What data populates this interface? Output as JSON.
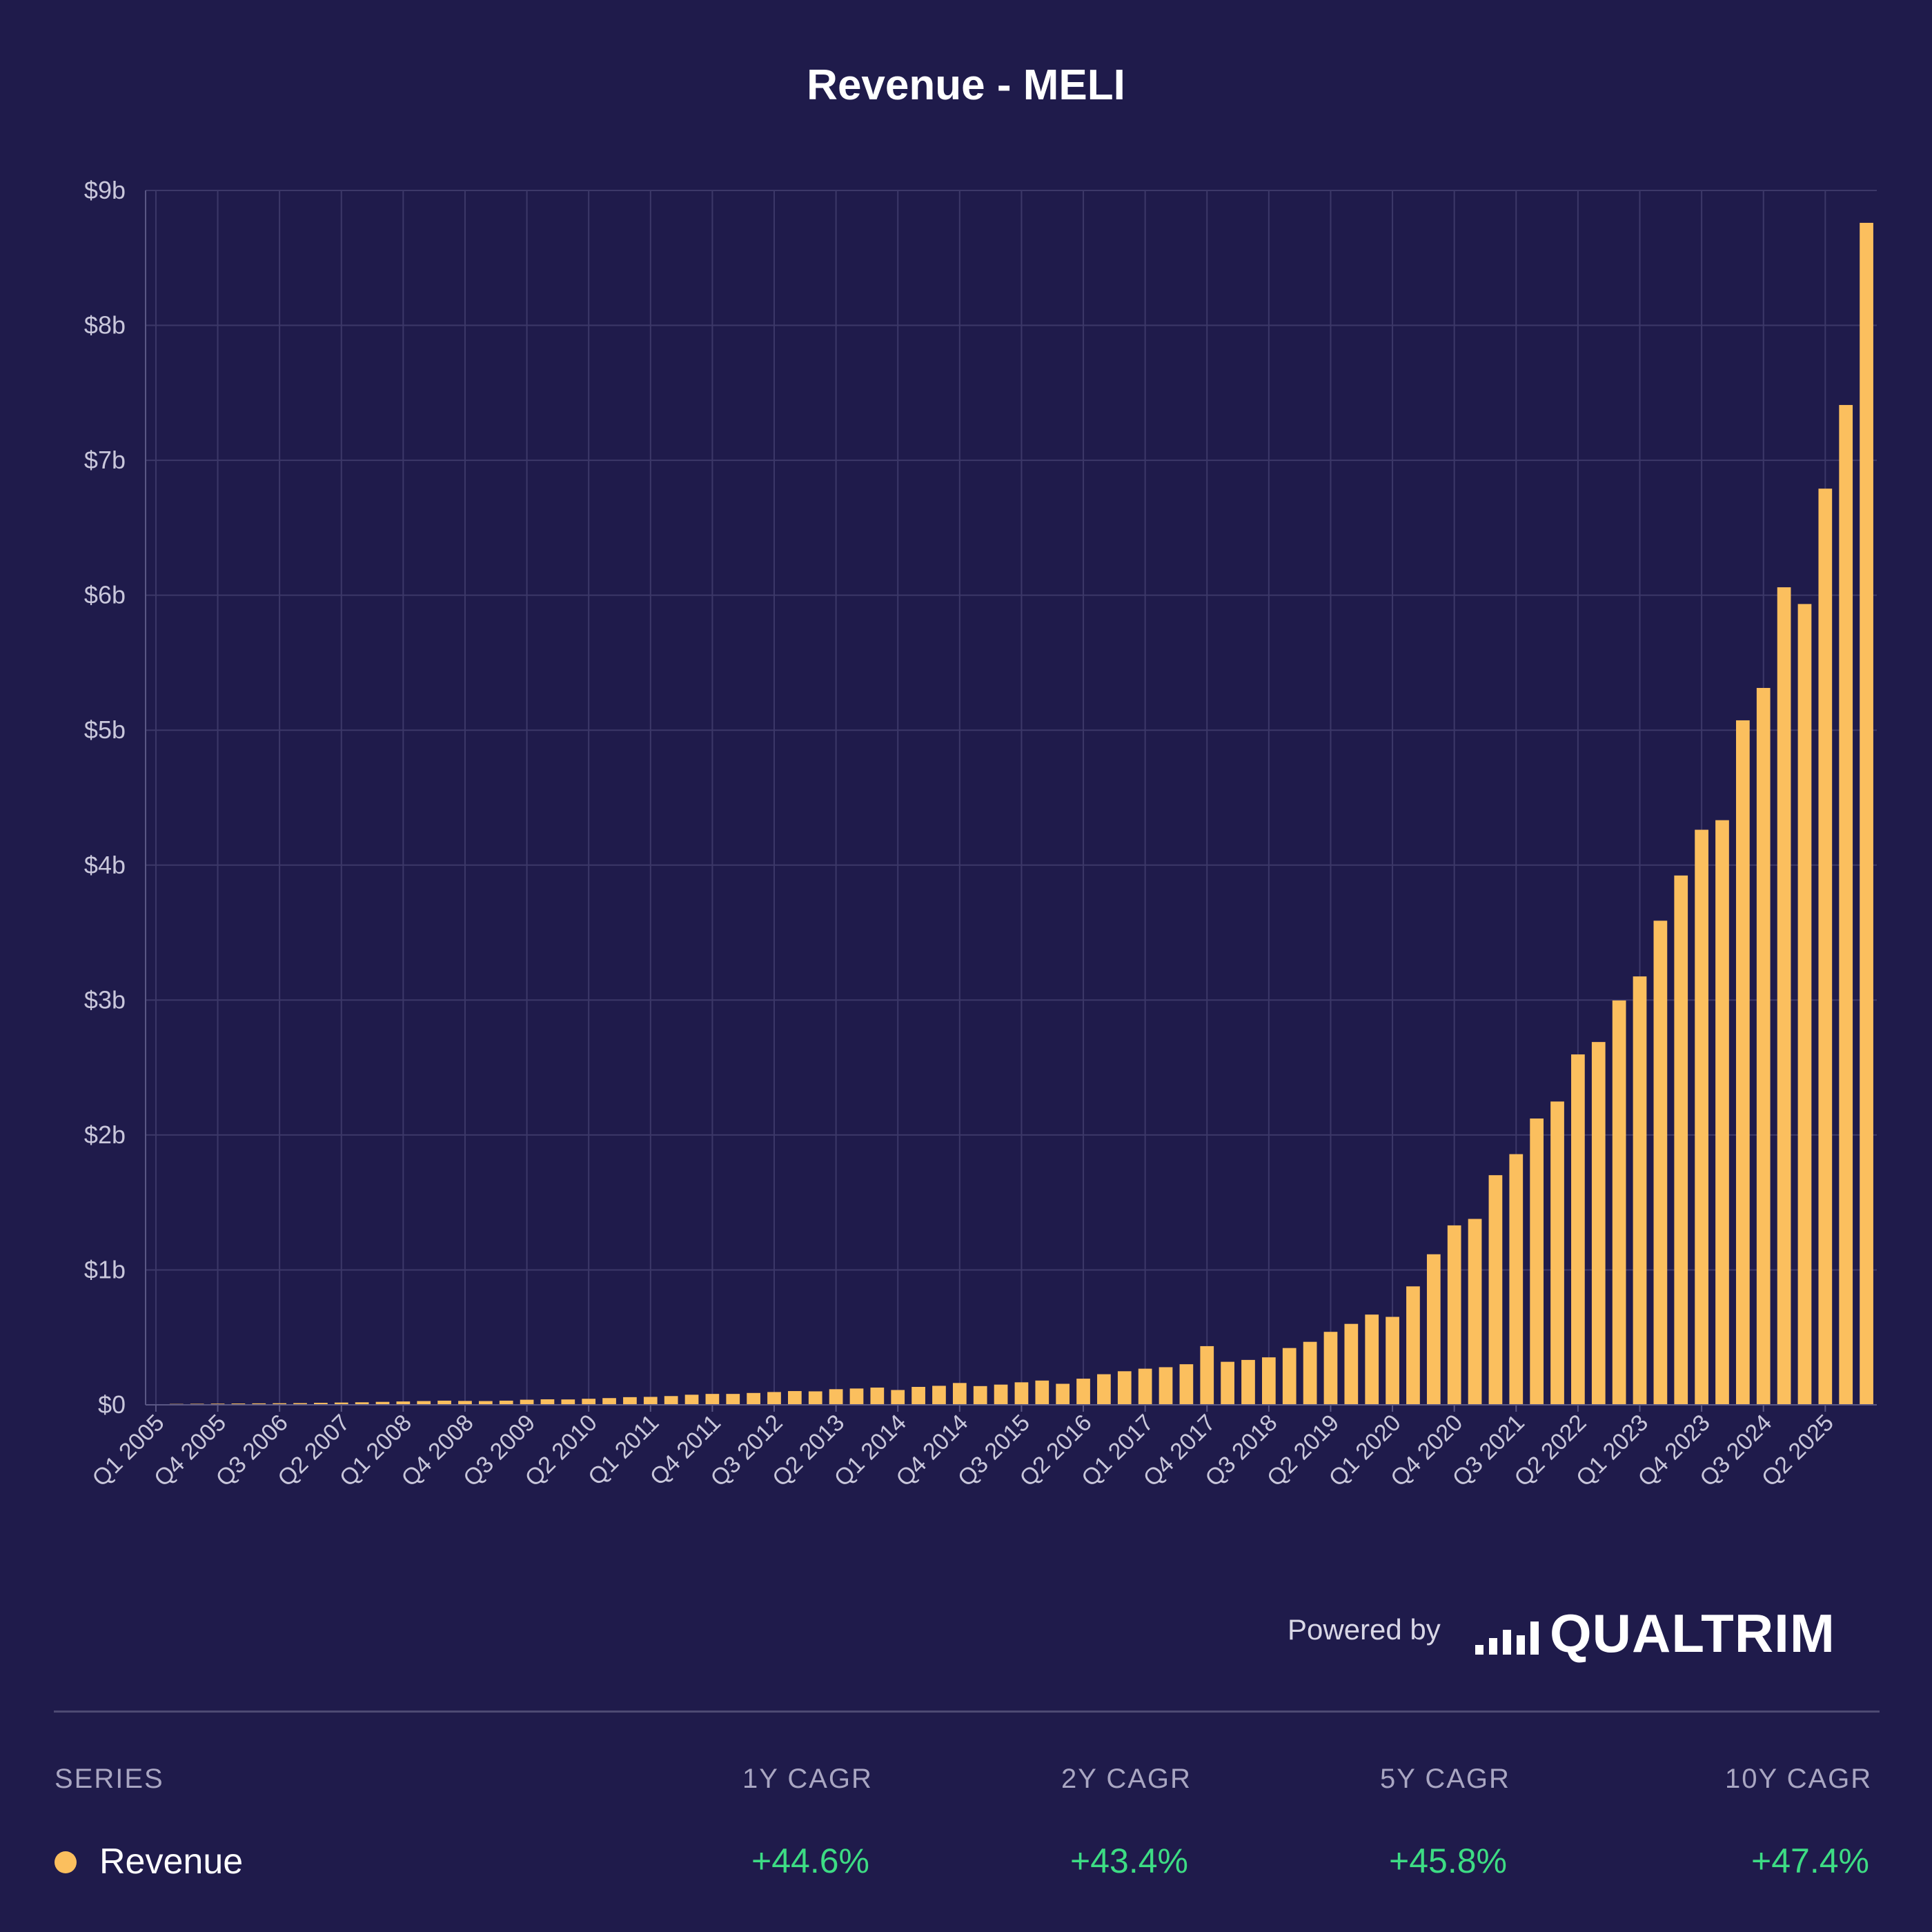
{
  "chart_data": {
    "type": "bar",
    "title": "Revenue - MELI",
    "xlabel": "",
    "ylabel": "",
    "ylim": [
      0,
      9
    ],
    "y_unit": "$b",
    "yticks": [
      "$0",
      "$1b",
      "$2b",
      "$3b",
      "$4b",
      "$5b",
      "$6b",
      "$7b",
      "$8b",
      "$9b"
    ],
    "x_tick_labels": [
      "Q1 2005",
      "Q4 2005",
      "Q3 2006",
      "Q2 2007",
      "Q1 2008",
      "Q4 2008",
      "Q3 2009",
      "Q2 2010",
      "Q1 2011",
      "Q4 2011",
      "Q3 2012",
      "Q2 2013",
      "Q1 2014",
      "Q4 2014",
      "Q3 2015",
      "Q2 2016",
      "Q1 2017",
      "Q4 2017",
      "Q3 2018",
      "Q2 2019",
      "Q1 2020",
      "Q4 2020",
      "Q3 2021",
      "Q2 2022",
      "Q1 2023",
      "Q4 2023",
      "Q3 2024",
      "Q2 2025"
    ],
    "grid": true,
    "legend": "none",
    "categories": [
      "Q1 2005",
      "Q2 2005",
      "Q3 2005",
      "Q4 2005",
      "Q1 2006",
      "Q2 2006",
      "Q3 2006",
      "Q4 2006",
      "Q1 2007",
      "Q2 2007",
      "Q3 2007",
      "Q4 2007",
      "Q1 2008",
      "Q2 2008",
      "Q3 2008",
      "Q4 2008",
      "Q1 2009",
      "Q2 2009",
      "Q3 2009",
      "Q4 2009",
      "Q1 2010",
      "Q2 2010",
      "Q3 2010",
      "Q4 2010",
      "Q1 2011",
      "Q2 2011",
      "Q3 2011",
      "Q4 2011",
      "Q1 2012",
      "Q2 2012",
      "Q3 2012",
      "Q4 2012",
      "Q1 2013",
      "Q2 2013",
      "Q3 2013",
      "Q4 2013",
      "Q1 2014",
      "Q2 2014",
      "Q3 2014",
      "Q4 2014",
      "Q1 2015",
      "Q2 2015",
      "Q3 2015",
      "Q4 2015",
      "Q1 2016",
      "Q2 2016",
      "Q3 2016",
      "Q4 2016",
      "Q1 2017",
      "Q2 2017",
      "Q3 2017",
      "Q4 2017",
      "Q1 2018",
      "Q2 2018",
      "Q3 2018",
      "Q4 2018",
      "Q1 2019",
      "Q2 2019",
      "Q3 2019",
      "Q4 2019",
      "Q1 2020",
      "Q2 2020",
      "Q3 2020",
      "Q4 2020",
      "Q1 2021",
      "Q2 2021",
      "Q3 2021",
      "Q4 2021",
      "Q1 2022",
      "Q2 2022",
      "Q3 2022",
      "Q4 2022",
      "Q1 2023",
      "Q2 2023",
      "Q3 2023",
      "Q4 2023",
      "Q1 2024",
      "Q2 2024",
      "Q3 2024",
      "Q4 2024",
      "Q1 2025",
      "Q2 2025",
      "Q3 2025",
      "Q4 2025"
    ],
    "series": [
      {
        "color": "#fbbf5e",
        "values": [
          0.005,
          0.007,
          0.008,
          0.009,
          0.01,
          0.011,
          0.012,
          0.013,
          0.015,
          0.017,
          0.019,
          0.022,
          0.025,
          0.028,
          0.031,
          0.029,
          0.028,
          0.031,
          0.038,
          0.041,
          0.04,
          0.045,
          0.05,
          0.057,
          0.059,
          0.065,
          0.075,
          0.081,
          0.081,
          0.088,
          0.095,
          0.102,
          0.1,
          0.116,
          0.121,
          0.128,
          0.11,
          0.133,
          0.141,
          0.162,
          0.139,
          0.15,
          0.167,
          0.18,
          0.156,
          0.194,
          0.227,
          0.249,
          0.268,
          0.279,
          0.301,
          0.435,
          0.319,
          0.333,
          0.352,
          0.421,
          0.467,
          0.541,
          0.6,
          0.669,
          0.652,
          0.878,
          1.116,
          1.33,
          1.378,
          1.702,
          1.858,
          2.122,
          2.248,
          2.597,
          2.689,
          2.997,
          3.175,
          3.588,
          3.923,
          4.262,
          4.333,
          5.073,
          5.313,
          6.059,
          5.935,
          6.79,
          7.41,
          8.76
        ]
      }
    ]
  },
  "footer": {
    "powered_by": "Powered by",
    "brand": "QUALTRIM"
  },
  "table": {
    "headers": {
      "series": "SERIES",
      "cagr_1y": "1Y CAGR",
      "cagr_2y": "2Y CAGR",
      "cagr_5y": "5Y CAGR",
      "cagr_10y": "10Y CAGR"
    },
    "row": {
      "name": "Revenue",
      "color": "#fbbf5e",
      "cagr_1y": "+44.6%",
      "cagr_2y": "+43.4%",
      "cagr_5y": "+45.8%",
      "cagr_10y": "+47.4%"
    }
  }
}
